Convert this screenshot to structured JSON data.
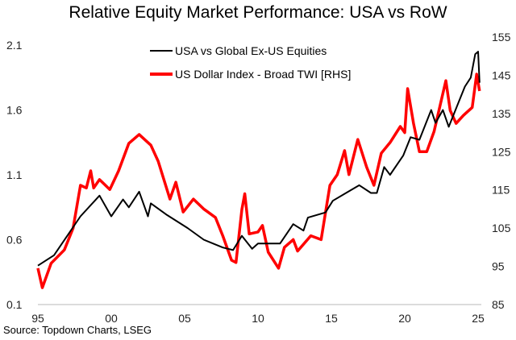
{
  "chart_data": {
    "type": "line",
    "title": "Relative Equity Market Performance: USA vs RoW",
    "source": "Source: Topdown Charts, LSEG",
    "xlim": [
      1995,
      2025.3
    ],
    "x_ticks": [
      {
        "value": 1995,
        "label": "95"
      },
      {
        "value": 2000,
        "label": "00"
      },
      {
        "value": 2005,
        "label": "05"
      },
      {
        "value": 2010,
        "label": "10"
      },
      {
        "value": 2015,
        "label": "15"
      },
      {
        "value": 2020,
        "label": "20"
      },
      {
        "value": 2025,
        "label": "25"
      }
    ],
    "ylim_left": [
      0.1,
      2.1
    ],
    "y_ticks_left": [
      "0.1",
      "0.6",
      "1.1",
      "1.6",
      "2.1"
    ],
    "ylim_right": [
      85,
      155
    ],
    "y_ticks_right": [
      "85",
      "95",
      "105",
      "115",
      "125",
      "135",
      "145",
      "155"
    ],
    "grid": false,
    "legend_placement": "top-center",
    "series": [
      {
        "name": "USA vs Global Ex-US Equities",
        "axis": "left",
        "color": "#000000",
        "x": [
          1995.0,
          1996.1,
          1997.0,
          1997.9,
          1999.2,
          2000.0,
          2000.8,
          2001.2,
          2001.9,
          2002.5,
          2002.7,
          2003.8,
          2005.2,
          2006.3,
          2007.6,
          2008.3,
          2008.9,
          2009.6,
          2010.0,
          2011.5,
          2012.4,
          2013.1,
          2013.4,
          2014.6,
          2015.1,
          2016.0,
          2016.9,
          2017.7,
          2018.1,
          2018.6,
          2019.0,
          2019.9,
          2020.4,
          2021.0,
          2021.8,
          2022.1,
          2022.6,
          2023.0,
          2023.6,
          2024.1,
          2024.5,
          2024.8,
          2025.0,
          2025.1
        ],
        "y": [
          0.4,
          0.48,
          0.63,
          0.78,
          0.94,
          0.78,
          0.91,
          0.85,
          0.97,
          0.78,
          0.88,
          0.79,
          0.69,
          0.6,
          0.54,
          0.52,
          0.63,
          0.53,
          0.57,
          0.57,
          0.72,
          0.67,
          0.77,
          0.81,
          0.9,
          0.96,
          1.02,
          0.96,
          0.96,
          1.16,
          1.1,
          1.25,
          1.39,
          1.37,
          1.6,
          1.5,
          1.6,
          1.47,
          1.64,
          1.78,
          1.85,
          2.03,
          2.05,
          1.81
        ]
      },
      {
        "name": "US Dollar Index - Broad TWI [RHS]",
        "axis": "right",
        "color": "#ff0000",
        "x": [
          1995.0,
          1995.3,
          1995.9,
          1996.8,
          1997.4,
          1997.9,
          1998.3,
          1998.6,
          1998.8,
          1999.2,
          1999.9,
          2000.5,
          2001.2,
          2001.9,
          2002.7,
          2003.2,
          2004.0,
          2004.4,
          2004.9,
          2005.6,
          2006.3,
          2007.1,
          2007.6,
          2008.2,
          2008.5,
          2008.9,
          2009.1,
          2009.4,
          2010.0,
          2010.3,
          2010.7,
          2011.4,
          2011.8,
          2012.4,
          2012.7,
          2013.6,
          2014.3,
          2014.9,
          2015.4,
          2015.9,
          2016.2,
          2016.8,
          2017.4,
          2017.9,
          2018.4,
          2019.0,
          2019.7,
          2020.0,
          2020.2,
          2020.6,
          2021.0,
          2021.5,
          2022.0,
          2022.8,
          2023.1,
          2023.5,
          2024.0,
          2024.6,
          2024.9,
          2025.1
        ],
        "y": [
          94.5,
          89.4,
          95.8,
          99.3,
          105.0,
          116.2,
          115.5,
          120.0,
          115.5,
          117.7,
          115.1,
          120.0,
          127.2,
          129.5,
          126.7,
          122.5,
          112.6,
          117.0,
          109.2,
          112.6,
          110.0,
          107.8,
          103.0,
          96.6,
          96.0,
          109.9,
          114.0,
          103.5,
          104.0,
          105.7,
          98.7,
          94.5,
          100.0,
          102.0,
          99.0,
          103.0,
          102.0,
          116.2,
          119.0,
          125.3,
          119.0,
          128.2,
          121.0,
          116.2,
          124.6,
          127.4,
          131.6,
          130.0,
          141.5,
          132.4,
          125.0,
          125.0,
          130.3,
          143.6,
          135.8,
          132.4,
          134.5,
          136.6,
          145.3,
          140.9
        ]
      }
    ]
  }
}
